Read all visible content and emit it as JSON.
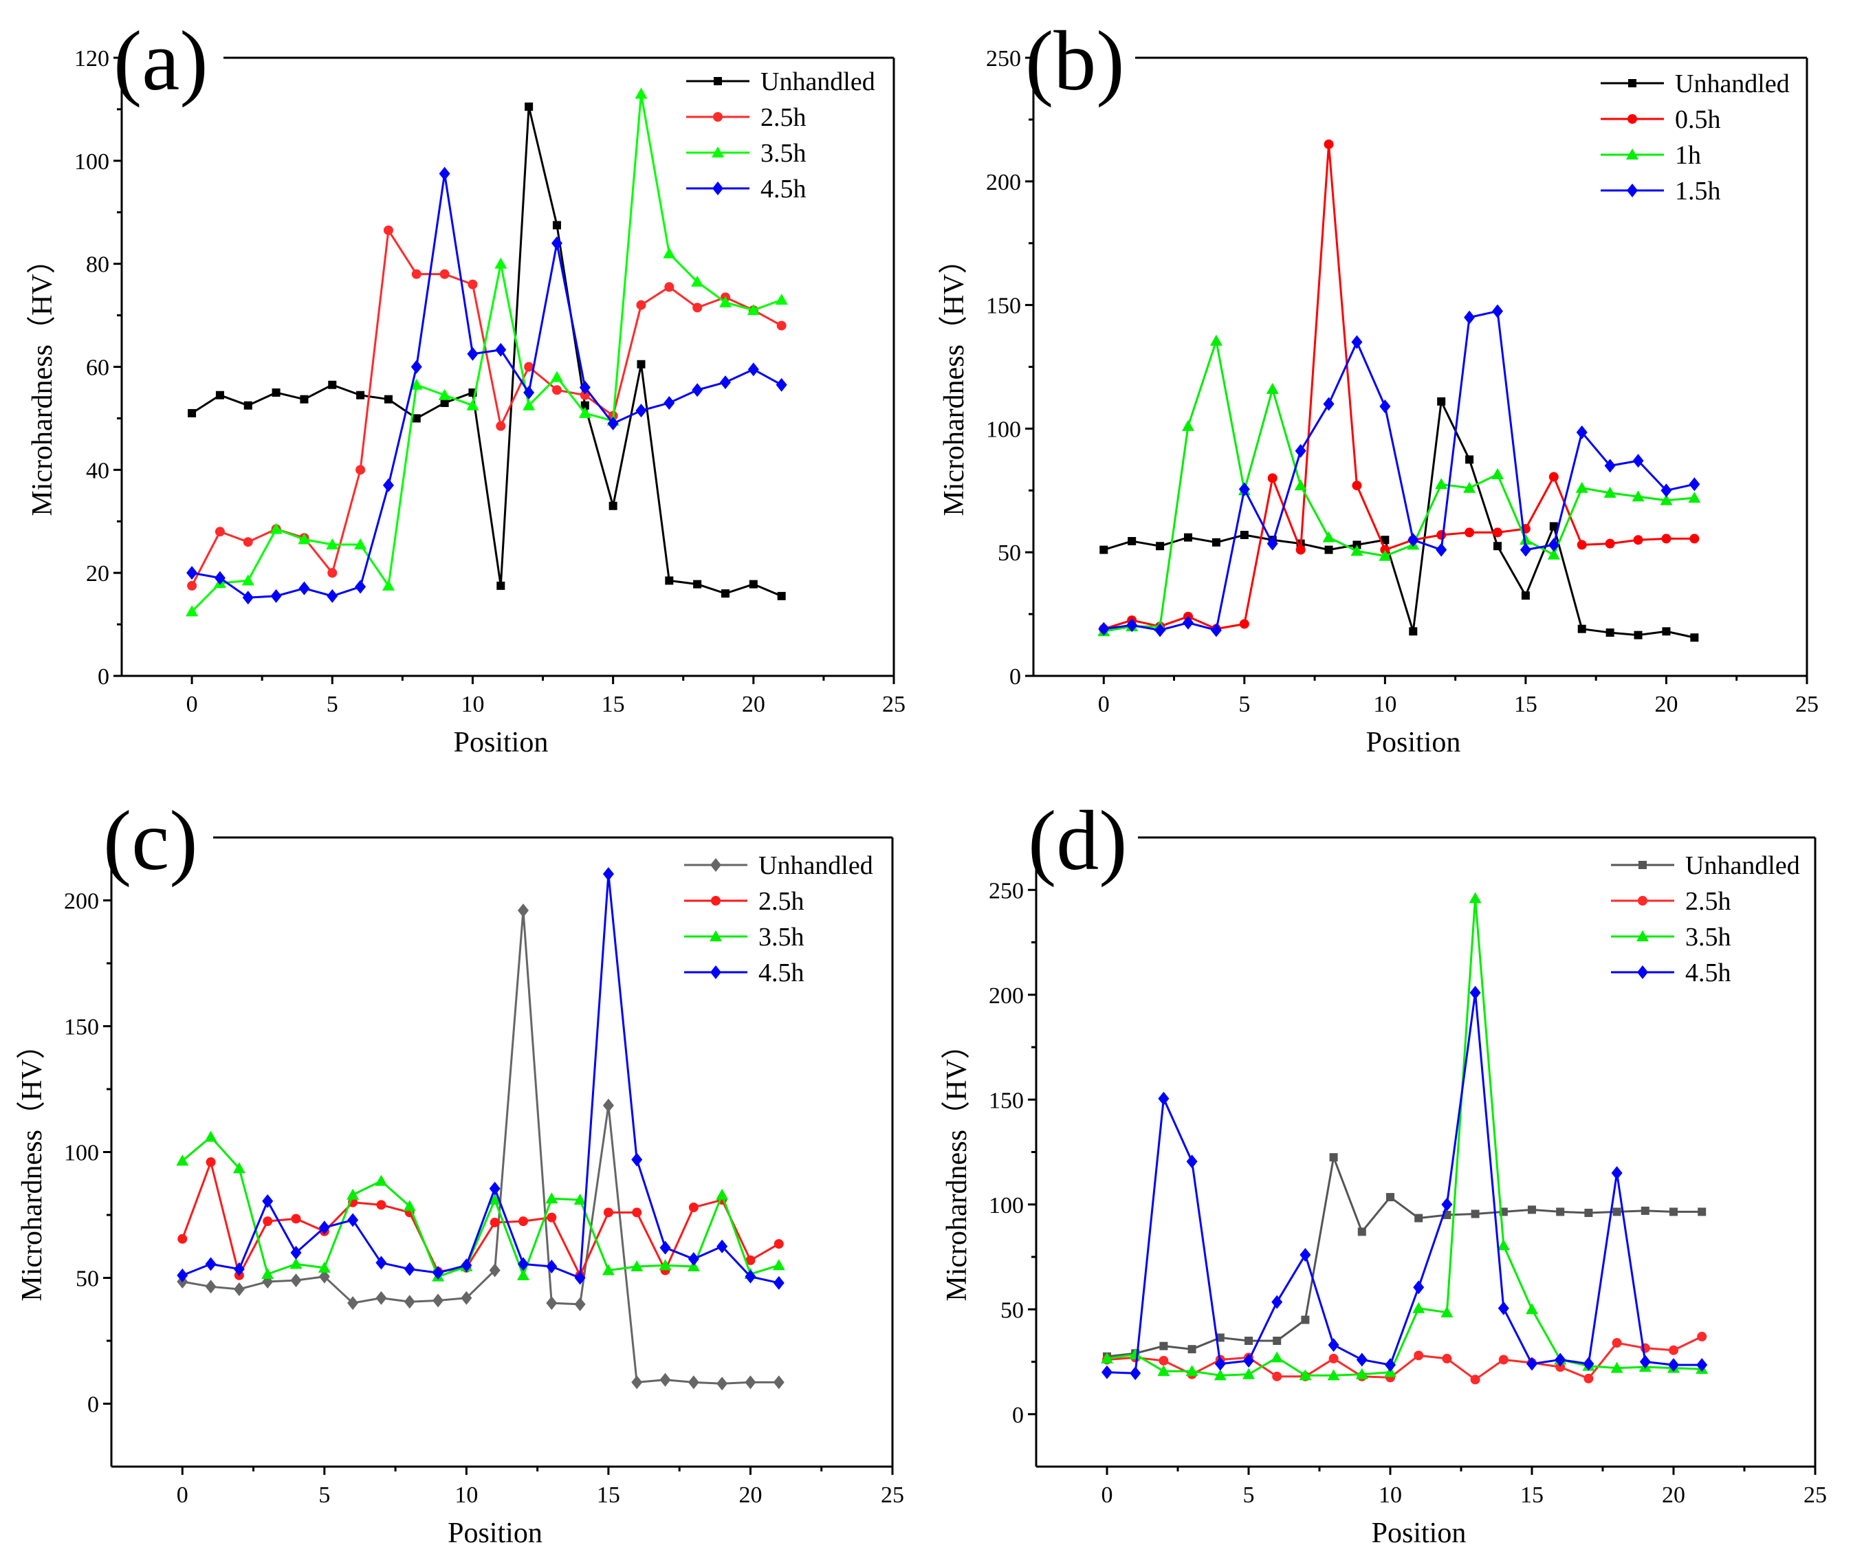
{
  "chart_data": [
    {
      "type": "line",
      "panel": "(a)",
      "xlabel": "Position",
      "ylabel": "Microhardness（HV）",
      "xlim": [
        -2.5,
        25
      ],
      "ylim": [
        0,
        120
      ],
      "xticks": [
        0,
        5,
        10,
        15,
        20,
        25
      ],
      "yticks": [
        0,
        20,
        40,
        60,
        80,
        100,
        120
      ],
      "x": [
        0,
        1,
        2,
        3,
        4,
        5,
        6,
        7,
        8,
        9,
        10,
        11,
        12,
        13,
        14,
        15,
        16,
        17,
        18,
        19,
        20,
        21
      ],
      "legend_position": "top-right",
      "series": [
        {
          "name": "Unhandled",
          "color": "#000000",
          "marker": "square",
          "values": [
            51,
            54.5,
            52.5,
            55,
            53.7,
            56.5,
            54.5,
            53.7,
            50,
            53,
            55,
            17.5,
            110.5,
            87.5,
            52.5,
            33,
            60.5,
            18.5,
            17.8,
            16,
            17.8,
            15.5
          ]
        },
        {
          "name": "2.5h",
          "color": "#ff2a2a",
          "marker": "circle",
          "values": [
            17.5,
            28,
            26,
            28.5,
            26.8,
            20,
            40,
            86.5,
            78,
            78,
            76,
            48.5,
            60,
            55.5,
            54.5,
            50.5,
            72,
            75.5,
            71.5,
            73.5,
            71,
            68
          ]
        },
        {
          "name": "3.5h",
          "color": "#00ff00",
          "marker": "triangle",
          "values": [
            12.5,
            18,
            18.5,
            28.5,
            26.5,
            25.5,
            25.5,
            17.5,
            56.5,
            54.5,
            52.5,
            80,
            52.5,
            58,
            51,
            49.5,
            113,
            82,
            76.5,
            72.5,
            71,
            73
          ]
        },
        {
          "name": "4.5h",
          "color": "#0000ff",
          "marker": "diamond",
          "values": [
            20,
            19,
            15.2,
            15.5,
            17,
            15.5,
            17.3,
            37,
            60,
            97.5,
            62.5,
            63.3,
            55,
            84,
            56,
            49,
            51.5,
            53,
            55.5,
            57,
            59.5,
            56.5
          ]
        }
      ]
    },
    {
      "type": "line",
      "panel": "(b)",
      "xlabel": "Position",
      "ylabel": "Microhardness（HV）",
      "xlim": [
        -2.5,
        25
      ],
      "ylim": [
        0,
        250
      ],
      "xticks": [
        0,
        5,
        10,
        15,
        20,
        25
      ],
      "yticks": [
        0,
        50,
        100,
        150,
        200,
        250
      ],
      "x": [
        0,
        1,
        2,
        3,
        4,
        5,
        6,
        7,
        8,
        9,
        10,
        11,
        12,
        13,
        14,
        15,
        16,
        17,
        18,
        19,
        20,
        21
      ],
      "legend_position": "top-right",
      "series": [
        {
          "name": "Unhandled",
          "color": "#000000",
          "marker": "square",
          "values": [
            51,
            54.5,
            52.5,
            56,
            54,
            57,
            55,
            53.5,
            51,
            53,
            55,
            18,
            111,
            87.5,
            52.5,
            32.5,
            60.5,
            19,
            17.5,
            16.5,
            18,
            15.5
          ]
        },
        {
          "name": "0.5h",
          "color": "#ff0000",
          "marker": "circle",
          "values": [
            19,
            22.5,
            20,
            24,
            19,
            21,
            80,
            51,
            215,
            77,
            51,
            55,
            57,
            58,
            58,
            59.5,
            80.5,
            53,
            53.5,
            55,
            55.5,
            55.5
          ]
        },
        {
          "name": "1h",
          "color": "#00ee00",
          "marker": "triangle",
          "values": [
            18,
            20,
            20,
            101,
            135.5,
            75,
            116,
            77,
            56,
            50.5,
            48.5,
            53,
            77.5,
            76,
            81.5,
            55,
            49,
            76,
            74,
            72.5,
            71,
            72
          ]
        },
        {
          "name": "1.5h",
          "color": "#0000ff",
          "marker": "diamond",
          "values": [
            19,
            20.5,
            18.5,
            21.5,
            18.5,
            75.5,
            53.5,
            91,
            110,
            135,
            109,
            55,
            51,
            145,
            147.5,
            51,
            53,
            98.5,
            85,
            87,
            75,
            77.5
          ]
        }
      ]
    },
    {
      "type": "line",
      "panel": "(c)",
      "xlabel": "Position",
      "ylabel": "Microhardness（HV）",
      "xlim": [
        -2.5,
        25
      ],
      "ylim": [
        -25,
        225
      ],
      "xticks": [
        0,
        5,
        10,
        15,
        20,
        25
      ],
      "yticks": [
        0,
        50,
        100,
        150,
        200
      ],
      "x": [
        0,
        1,
        2,
        3,
        4,
        5,
        6,
        7,
        8,
        9,
        10,
        11,
        12,
        13,
        14,
        15,
        16,
        17,
        18,
        19,
        20,
        21
      ],
      "legend_position": "top-right",
      "series": [
        {
          "name": "Unhandled",
          "color": "#666666",
          "marker": "diamond",
          "values": [
            48.5,
            46.5,
            45.5,
            48.5,
            49,
            50.5,
            40,
            42,
            40.5,
            41,
            42,
            53,
            196,
            40,
            39.5,
            118.5,
            8.5,
            9.5,
            8.5,
            8,
            8.5,
            8.5
          ]
        },
        {
          "name": "2.5h",
          "color": "#ff1a1a",
          "marker": "circle",
          "values": [
            65.5,
            96,
            51,
            72.5,
            73.5,
            68.5,
            80,
            79,
            76,
            52.5,
            54,
            72,
            72.5,
            74,
            51,
            76,
            76,
            53,
            78,
            81,
            57,
            63.5
          ]
        },
        {
          "name": "3.5h",
          "color": "#00ee00",
          "marker": "triangle",
          "values": [
            96.5,
            106,
            93.5,
            51.5,
            55.5,
            54,
            83,
            88.5,
            78.5,
            50.5,
            54.5,
            81,
            51,
            81.5,
            81,
            53,
            54.5,
            55,
            54.5,
            83,
            51.5,
            55
          ]
        },
        {
          "name": "4.5h",
          "color": "#0000ff",
          "marker": "diamond",
          "values": [
            51,
            55.5,
            53.5,
            80.5,
            60,
            70,
            73,
            56,
            53.5,
            52,
            55,
            85.5,
            55.5,
            54.5,
            50,
            210.5,
            97,
            62,
            57.5,
            62.5,
            50.5,
            48
          ]
        }
      ]
    },
    {
      "type": "line",
      "panel": "(d)",
      "xlabel": "Position",
      "ylabel": "Microhardness（HV）",
      "xlim": [
        -2.5,
        25
      ],
      "ylim": [
        -25,
        275
      ],
      "xticks": [
        0,
        5,
        10,
        15,
        20,
        25
      ],
      "yticks": [
        0,
        50,
        100,
        150,
        200,
        250
      ],
      "x": [
        0,
        1,
        2,
        3,
        4,
        5,
        6,
        7,
        8,
        9,
        10,
        11,
        12,
        13,
        14,
        15,
        16,
        17,
        18,
        19,
        20,
        21
      ],
      "legend_position": "top-right",
      "series": [
        {
          "name": "Unhandled",
          "color": "#555555",
          "marker": "square",
          "values": [
            27.5,
            29,
            32.5,
            31,
            36.5,
            35,
            35,
            45,
            122.5,
            87,
            103.5,
            93.5,
            95,
            95.5,
            96.5,
            97.5,
            96.5,
            96,
            96.5,
            97,
            96.5,
            96.5
          ]
        },
        {
          "name": "2.5h",
          "color": "#ff2a2a",
          "marker": "circle",
          "values": [
            26,
            27,
            25.5,
            19,
            26,
            27,
            18,
            18,
            26.5,
            18,
            17.5,
            28,
            26.5,
            16.5,
            26,
            24.5,
            22.5,
            17,
            34,
            31.5,
            30.5,
            37
          ]
        },
        {
          "name": "3.5h",
          "color": "#00ee00",
          "marker": "triangle",
          "values": [
            26.5,
            28.5,
            20.5,
            20.5,
            18.5,
            19,
            27,
            18.5,
            18.5,
            19,
            20,
            50.5,
            48.5,
            246,
            80.5,
            50,
            26,
            23,
            22,
            22.5,
            22,
            21.5
          ]
        },
        {
          "name": "4.5h",
          "color": "#0000ff",
          "marker": "diamond",
          "values": [
            20,
            19.5,
            150.5,
            120.5,
            24,
            25.5,
            53.5,
            76,
            33,
            26,
            23.5,
            60.5,
            100,
            201,
            50.5,
            24,
            26,
            24,
            115,
            25,
            23.5,
            23.5
          ]
        }
      ]
    }
  ]
}
